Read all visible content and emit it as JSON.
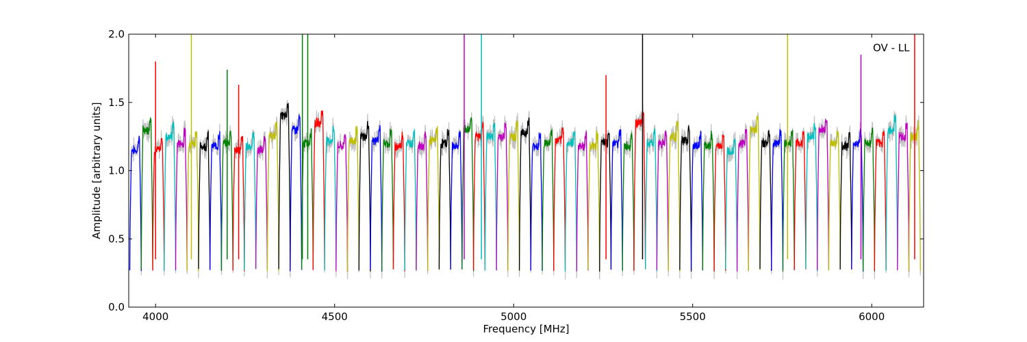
{
  "chart_data": {
    "type": "line",
    "title": "",
    "xlabel": "Frequency [MHz]",
    "ylabel": "Amplitude [arbitrary units]",
    "xlim": [
      3925,
      6145
    ],
    "ylim": [
      0.0,
      2.0
    ],
    "xticks": [
      4000,
      4500,
      5000,
      5500,
      6000
    ],
    "yticks": [
      0.0,
      0.5,
      1.0,
      1.5,
      2.0
    ],
    "xtick_labels": [
      "4000",
      "4500",
      "5000",
      "5500",
      "6000"
    ],
    "ytick_labels": [
      "0.0",
      "0.5",
      "1.0",
      "1.5",
      "2.0"
    ],
    "annotation": "OV - LL",
    "grid": false,
    "background_color": "#c0c0c0",
    "colors": [
      "#0000ff",
      "#008000",
      "#ff0000",
      "#00bfbf",
      "#bf00bf",
      "#bfbf00",
      "#000000"
    ],
    "band_width_mhz": 32,
    "bands": [
      {
        "start": 3928,
        "level": 1.15,
        "color": "#0000ff"
      },
      {
        "start": 3960,
        "level": 1.3,
        "color": "#008000"
      },
      {
        "start": 3992,
        "level": 1.15,
        "color": "#ff0000"
      },
      {
        "start": 4024,
        "level": 1.25,
        "color": "#00bfbf"
      },
      {
        "start": 4056,
        "level": 1.2,
        "color": "#bf00bf"
      },
      {
        "start": 4088,
        "level": 1.2,
        "color": "#bfbf00"
      },
      {
        "start": 4120,
        "level": 1.18,
        "color": "#000000"
      },
      {
        "start": 4152,
        "level": 1.18,
        "color": "#0000ff"
      },
      {
        "start": 4184,
        "level": 1.2,
        "color": "#008000"
      },
      {
        "start": 4216,
        "level": 1.15,
        "color": "#ff0000"
      },
      {
        "start": 4248,
        "level": 1.18,
        "color": "#00bfbf"
      },
      {
        "start": 4280,
        "level": 1.15,
        "color": "#bf00bf"
      },
      {
        "start": 4312,
        "level": 1.25,
        "color": "#bfbf00"
      },
      {
        "start": 4344,
        "level": 1.4,
        "color": "#000000"
      },
      {
        "start": 4376,
        "level": 1.3,
        "color": "#0000ff"
      },
      {
        "start": 4408,
        "level": 1.2,
        "color": "#008000"
      },
      {
        "start": 4440,
        "level": 1.35,
        "color": "#ff0000"
      },
      {
        "start": 4472,
        "level": 1.22,
        "color": "#00bfbf"
      },
      {
        "start": 4504,
        "level": 1.18,
        "color": "#bf00bf"
      },
      {
        "start": 4536,
        "level": 1.22,
        "color": "#bfbf00"
      },
      {
        "start": 4568,
        "level": 1.25,
        "color": "#000000"
      },
      {
        "start": 4600,
        "level": 1.22,
        "color": "#0000ff"
      },
      {
        "start": 4632,
        "level": 1.2,
        "color": "#008000"
      },
      {
        "start": 4664,
        "level": 1.18,
        "color": "#ff0000"
      },
      {
        "start": 4696,
        "level": 1.2,
        "color": "#00bfbf"
      },
      {
        "start": 4728,
        "level": 1.18,
        "color": "#bf00bf"
      },
      {
        "start": 4760,
        "level": 1.22,
        "color": "#bfbf00"
      },
      {
        "start": 4792,
        "level": 1.2,
        "color": "#000000"
      },
      {
        "start": 4824,
        "level": 1.18,
        "color": "#0000ff"
      },
      {
        "start": 4856,
        "level": 1.3,
        "color": "#008000"
      },
      {
        "start": 4888,
        "level": 1.25,
        "color": "#ff0000"
      },
      {
        "start": 4920,
        "level": 1.25,
        "color": "#00bfbf"
      },
      {
        "start": 4952,
        "level": 1.25,
        "color": "#bf00bf"
      },
      {
        "start": 4984,
        "level": 1.25,
        "color": "#bfbf00"
      },
      {
        "start": 5016,
        "level": 1.28,
        "color": "#000000"
      },
      {
        "start": 5048,
        "level": 1.18,
        "color": "#0000ff"
      },
      {
        "start": 5080,
        "level": 1.2,
        "color": "#008000"
      },
      {
        "start": 5112,
        "level": 1.22,
        "color": "#ff0000"
      },
      {
        "start": 5144,
        "level": 1.2,
        "color": "#00bfbf"
      },
      {
        "start": 5176,
        "level": 1.18,
        "color": "#bf00bf"
      },
      {
        "start": 5208,
        "level": 1.18,
        "color": "#bfbf00"
      },
      {
        "start": 5240,
        "level": 1.2,
        "color": "#000000"
      },
      {
        "start": 5272,
        "level": 1.2,
        "color": "#0000ff"
      },
      {
        "start": 5304,
        "level": 1.18,
        "color": "#008000"
      },
      {
        "start": 5336,
        "level": 1.35,
        "color": "#ff0000"
      },
      {
        "start": 5368,
        "level": 1.2,
        "color": "#00bfbf"
      },
      {
        "start": 5400,
        "level": 1.2,
        "color": "#bf00bf"
      },
      {
        "start": 5432,
        "level": 1.25,
        "color": "#bfbf00"
      },
      {
        "start": 5464,
        "level": 1.22,
        "color": "#000000"
      },
      {
        "start": 5496,
        "level": 1.18,
        "color": "#0000ff"
      },
      {
        "start": 5528,
        "level": 1.18,
        "color": "#008000"
      },
      {
        "start": 5560,
        "level": 1.18,
        "color": "#ff0000"
      },
      {
        "start": 5592,
        "level": 1.15,
        "color": "#00bfbf"
      },
      {
        "start": 5624,
        "level": 1.2,
        "color": "#bf00bf"
      },
      {
        "start": 5656,
        "level": 1.3,
        "color": "#bfbf00"
      },
      {
        "start": 5688,
        "level": 1.2,
        "color": "#000000"
      },
      {
        "start": 5720,
        "level": 1.2,
        "color": "#0000ff"
      },
      {
        "start": 5752,
        "level": 1.2,
        "color": "#008000"
      },
      {
        "start": 5784,
        "level": 1.2,
        "color": "#ff0000"
      },
      {
        "start": 5816,
        "level": 1.25,
        "color": "#00bfbf"
      },
      {
        "start": 5848,
        "level": 1.3,
        "color": "#bf00bf"
      },
      {
        "start": 5880,
        "level": 1.2,
        "color": "#bfbf00"
      },
      {
        "start": 5912,
        "level": 1.18,
        "color": "#000000"
      },
      {
        "start": 5944,
        "level": 1.2,
        "color": "#0000ff"
      },
      {
        "start": 5976,
        "level": 1.2,
        "color": "#008000"
      },
      {
        "start": 6008,
        "level": 1.2,
        "color": "#ff0000"
      },
      {
        "start": 6040,
        "level": 1.3,
        "color": "#00bfbf"
      },
      {
        "start": 6072,
        "level": 1.25,
        "color": "#bf00bf"
      },
      {
        "start": 6104,
        "level": 1.25,
        "color": "#bfbf00"
      }
    ],
    "spikes": [
      {
        "x": 4000,
        "y": 1.8,
        "color": "#ff0000"
      },
      {
        "x": 4100,
        "y": 2.0,
        "color": "#bfbf00"
      },
      {
        "x": 4200,
        "y": 1.74,
        "color": "#008000"
      },
      {
        "x": 4232,
        "y": 1.63,
        "color": "#ff0000"
      },
      {
        "x": 4410,
        "y": 2.0,
        "color": "#008000"
      },
      {
        "x": 4425,
        "y": 2.0,
        "color": "#008000"
      },
      {
        "x": 4862,
        "y": 2.0,
        "color": "#bf00bf"
      },
      {
        "x": 4910,
        "y": 2.0,
        "color": "#00bfbf"
      },
      {
        "x": 5258,
        "y": 1.7,
        "color": "#ff0000"
      },
      {
        "x": 5360,
        "y": 2.0,
        "color": "#000000"
      },
      {
        "x": 5765,
        "y": 2.0,
        "color": "#bfbf00"
      },
      {
        "x": 5970,
        "y": 1.85,
        "color": "#bf00bf"
      },
      {
        "x": 6120,
        "y": 2.0,
        "color": "#ff0000"
      }
    ]
  }
}
